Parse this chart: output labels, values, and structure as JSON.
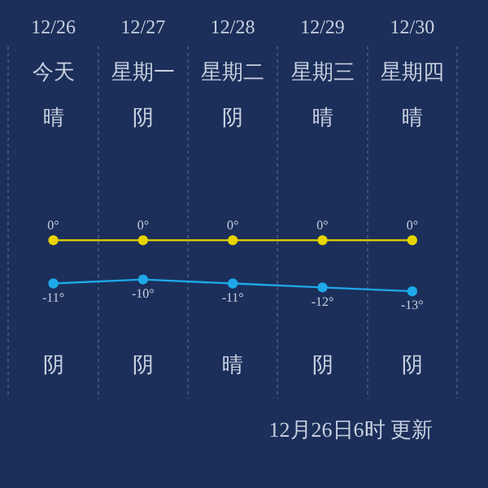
{
  "chart_data": {
    "type": "line",
    "categories": [
      "12/26",
      "12/27",
      "12/28",
      "12/29",
      "12/30"
    ],
    "series": [
      {
        "color": "#e8d400",
        "values": [
          0,
          0,
          0,
          0,
          0
        ],
        "value_labels": [
          "0°",
          "0°",
          "0°",
          "0°",
          "0°"
        ]
      },
      {
        "color": "#1ea8e8",
        "values": [
          -11,
          -10,
          -11,
          -12,
          -13
        ],
        "value_labels": [
          "-11°",
          "-10°",
          "-11°",
          "-12°",
          "-13°"
        ]
      }
    ],
    "annotations": [
      "今天",
      "星期一",
      "星期二",
      "星期三",
      "星期四",
      "晴",
      "阴",
      "阴",
      "晴",
      "晴",
      "阴",
      "阴",
      "晴",
      "阴",
      "阴",
      "12月26日6时 更新"
    ],
    "grid": "x",
    "legend": false,
    "marker": "circle",
    "line_style": "solid"
  }
}
